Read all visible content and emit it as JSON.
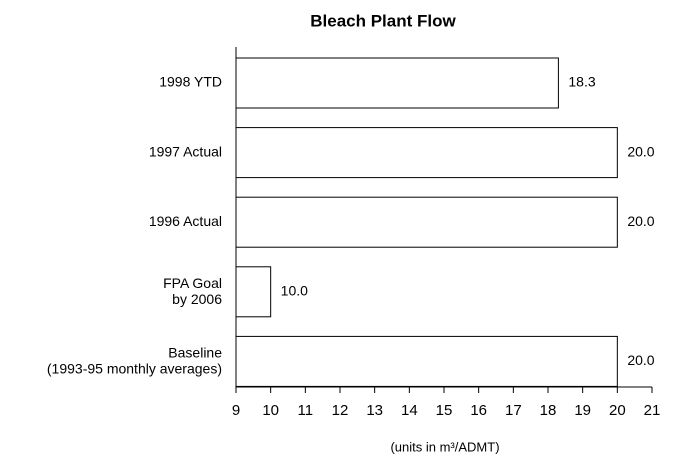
{
  "chart_data": {
    "type": "barh",
    "title": "Bleach Plant Flow",
    "categories": [
      "1998 YTD",
      "1997 Actual",
      "1996 Actual",
      "FPA Goal\nby 2006",
      "Baseline\n(1993-95 monthly averages)"
    ],
    "values": [
      18.3,
      20.0,
      20.0,
      10.0,
      20.0
    ],
    "value_labels": [
      "18.3",
      "20.0",
      "20.0",
      "10.0",
      "20.0"
    ],
    "color": "#ffffff",
    "xlim": [
      9,
      21
    ],
    "xticks": [
      9,
      10,
      11,
      12,
      13,
      14,
      15,
      16,
      17,
      18,
      19,
      20,
      21
    ],
    "xlabel": "(units in m³/ADMT)",
    "grid": false
  }
}
